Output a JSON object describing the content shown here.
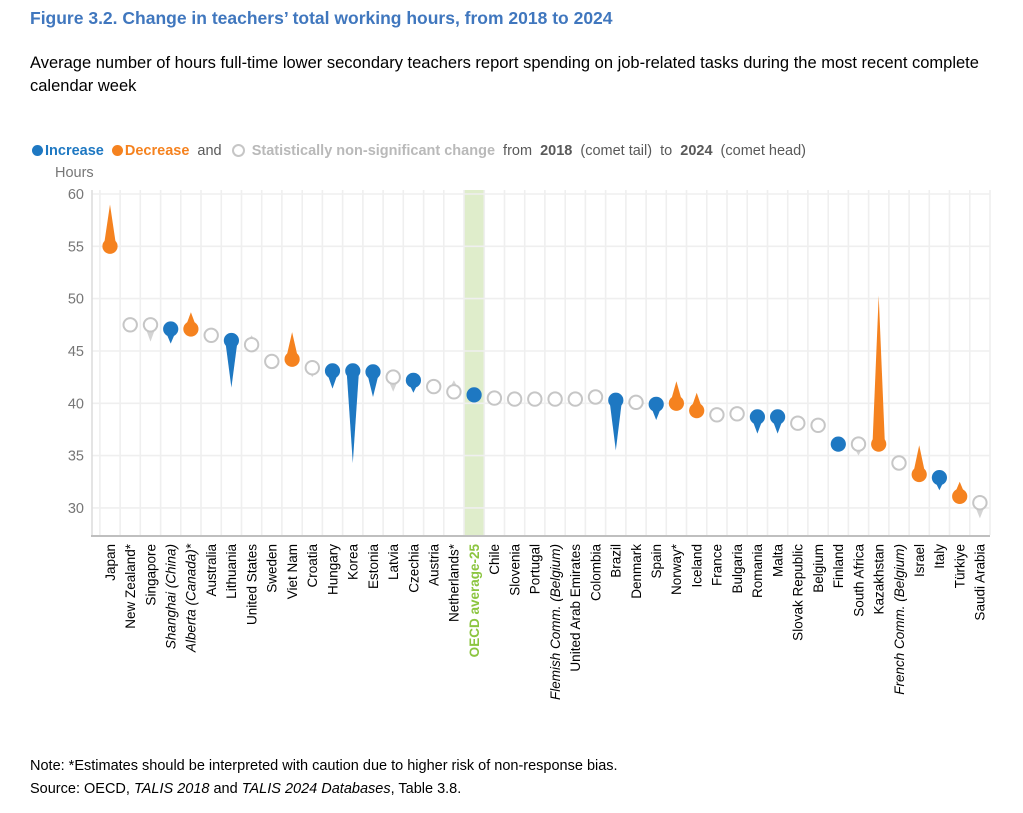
{
  "figure": {
    "title": "Figure 3.2. Change in teachers’ total working hours, from 2018 to 2024",
    "subtitle": "Average number of hours full-time lower secondary teachers report spending on job-related tasks during the most recent complete calendar week",
    "note": "Note: *Estimates should be interpreted with caution due to higher risk of non-response bias.",
    "source": {
      "prefix": "Source: OECD, ",
      "italic1": "TALIS 2018",
      "mid": " and ",
      "italic2": "TALIS 2024 Databases",
      "suffix": ", Table 3.8."
    }
  },
  "legend": {
    "increase_label": "Increase",
    "decrease_label": "Decrease",
    "and_text": "and",
    "nonsig_label": "Statistically non-significant change",
    "from_text": "from",
    "year_tail": "2018",
    "tail_note": "(comet tail)",
    "to_text": "to",
    "year_head": "2024",
    "head_note": "(comet head)"
  },
  "colors": {
    "increase": "#1E78C2",
    "decrease": "#F5821F",
    "nonsig_stroke": "#C6C6C6",
    "nonsig_tail": "#D4D4D4",
    "band": "#DFEDCB",
    "highlight_label": "#8CC540",
    "title": "#4077BE",
    "axis_text": "#767676",
    "gridline": "#EFEFEF",
    "axis_line": "#BFBFBF",
    "legend_gray": "#B9B9B9",
    "legend_dark": "#595959"
  },
  "chart_data": {
    "type": "comet",
    "title": "Change in teachers’ total working hours, from 2018 to 2024",
    "ylabel": "Hours",
    "xlabel": "",
    "yticks": [
      60,
      55,
      50,
      45,
      40,
      35,
      30
    ],
    "ylim": [
      27.4,
      60.4
    ],
    "grid": true,
    "tail_year": "2018",
    "head_year": "2024",
    "legend_position": "top",
    "highlight_column": "OECD average-25",
    "points": [
      {
        "label": "Japan",
        "y2018": 59.0,
        "y2024": 55.0,
        "change": "decrease",
        "italic": false
      },
      {
        "label": "New Zealand*",
        "y2018": 47.5,
        "y2024": 47.5,
        "change": "nonsig",
        "italic": false
      },
      {
        "label": "Singapore",
        "y2018": 45.9,
        "y2024": 47.5,
        "change": "nonsig",
        "italic": false
      },
      {
        "label": "Shanghai (China)",
        "y2018": 45.7,
        "y2024": 47.1,
        "change": "increase",
        "italic": true
      },
      {
        "label": "Alberta (Canada)*",
        "y2018": 48.7,
        "y2024": 47.1,
        "change": "decrease",
        "italic": true
      },
      {
        "label": "Australia",
        "y2018": 46.5,
        "y2024": 46.5,
        "change": "nonsig",
        "italic": false
      },
      {
        "label": "Lithuania",
        "y2018": 41.5,
        "y2024": 46.0,
        "change": "increase",
        "italic": false
      },
      {
        "label": "United States",
        "y2018": 46.5,
        "y2024": 45.6,
        "change": "nonsig",
        "italic": false
      },
      {
        "label": "Sweden",
        "y2018": 44.0,
        "y2024": 44.0,
        "change": "nonsig",
        "italic": false
      },
      {
        "label": "Viet Nam",
        "y2018": 46.8,
        "y2024": 44.2,
        "change": "decrease",
        "italic": false
      },
      {
        "label": "Croatia",
        "y2018": 42.5,
        "y2024": 43.4,
        "change": "nonsig",
        "italic": false
      },
      {
        "label": "Hungary",
        "y2018": 41.4,
        "y2024": 43.1,
        "change": "increase",
        "italic": false
      },
      {
        "label": "Korea",
        "y2018": 34.3,
        "y2024": 43.1,
        "change": "increase",
        "italic": false
      },
      {
        "label": "Estonia",
        "y2018": 40.6,
        "y2024": 43.0,
        "change": "increase",
        "italic": false
      },
      {
        "label": "Latvia",
        "y2018": 41.1,
        "y2024": 42.5,
        "change": "nonsig",
        "italic": false
      },
      {
        "label": "Czechia",
        "y2018": 41.0,
        "y2024": 42.2,
        "change": "increase",
        "italic": false
      },
      {
        "label": "Austria",
        "y2018": 41.6,
        "y2024": 41.6,
        "change": "nonsig",
        "italic": false
      },
      {
        "label": "Netherlands*",
        "y2018": 42.2,
        "y2024": 41.1,
        "change": "nonsig",
        "italic": false
      },
      {
        "label": "OECD average-25",
        "y2018": 40.5,
        "y2024": 40.8,
        "change": "increase",
        "italic": false,
        "highlight": true
      },
      {
        "label": "Chile",
        "y2018": 40.5,
        "y2024": 40.5,
        "change": "nonsig",
        "italic": false
      },
      {
        "label": "Slovenia",
        "y2018": 40.4,
        "y2024": 40.4,
        "change": "nonsig",
        "italic": false
      },
      {
        "label": "Portugal",
        "y2018": 40.4,
        "y2024": 40.4,
        "change": "nonsig",
        "italic": false
      },
      {
        "label": "Flemish Comm. (Belgium)",
        "y2018": 40.4,
        "y2024": 40.4,
        "change": "nonsig",
        "italic": true
      },
      {
        "label": "United Arab Emirates",
        "y2018": 40.4,
        "y2024": 40.4,
        "change": "nonsig",
        "italic": false
      },
      {
        "label": "Colombia",
        "y2018": 41.1,
        "y2024": 40.6,
        "change": "nonsig",
        "italic": false
      },
      {
        "label": "Brazil",
        "y2018": 35.5,
        "y2024": 40.3,
        "change": "increase",
        "italic": false
      },
      {
        "label": "Denmark",
        "y2018": 40.1,
        "y2024": 40.1,
        "change": "nonsig",
        "italic": false
      },
      {
        "label": "Spain",
        "y2018": 38.4,
        "y2024": 39.9,
        "change": "increase",
        "italic": false
      },
      {
        "label": "Norway*",
        "y2018": 42.1,
        "y2024": 40.0,
        "change": "decrease",
        "italic": false
      },
      {
        "label": "Iceland",
        "y2018": 41.0,
        "y2024": 39.3,
        "change": "decrease",
        "italic": false
      },
      {
        "label": "France",
        "y2018": 38.9,
        "y2024": 38.9,
        "change": "nonsig",
        "italic": false
      },
      {
        "label": "Bulgaria",
        "y2018": 39.0,
        "y2024": 39.0,
        "change": "nonsig",
        "italic": false
      },
      {
        "label": "Romania",
        "y2018": 37.1,
        "y2024": 38.7,
        "change": "increase",
        "italic": false
      },
      {
        "label": "Malta",
        "y2018": 37.1,
        "y2024": 38.7,
        "change": "increase",
        "italic": false
      },
      {
        "label": "Slovak Republic",
        "y2018": 38.1,
        "y2024": 38.1,
        "change": "nonsig",
        "italic": false
      },
      {
        "label": "Belgium",
        "y2018": 37.9,
        "y2024": 37.9,
        "change": "nonsig",
        "italic": false
      },
      {
        "label": "Finland",
        "y2018": 35.4,
        "y2024": 36.1,
        "change": "increase",
        "italic": false
      },
      {
        "label": "South Africa",
        "y2018": 35.0,
        "y2024": 36.1,
        "change": "nonsig",
        "italic": false
      },
      {
        "label": "Kazakhstan",
        "y2018": 50.3,
        "y2024": 36.1,
        "change": "decrease",
        "italic": false
      },
      {
        "label": "French Comm. (Belgium)",
        "y2018": 34.3,
        "y2024": 34.3,
        "change": "nonsig",
        "italic": true
      },
      {
        "label": "Israel",
        "y2018": 36.0,
        "y2024": 33.2,
        "change": "decrease",
        "italic": false
      },
      {
        "label": "Italy",
        "y2018": 31.7,
        "y2024": 32.9,
        "change": "increase",
        "italic": false
      },
      {
        "label": "Türkiye",
        "y2018": 32.5,
        "y2024": 31.1,
        "change": "decrease",
        "italic": false
      },
      {
        "label": "Saudi Arabia",
        "y2018": 29.0,
        "y2024": 30.5,
        "change": "nonsig",
        "italic": false
      }
    ]
  }
}
